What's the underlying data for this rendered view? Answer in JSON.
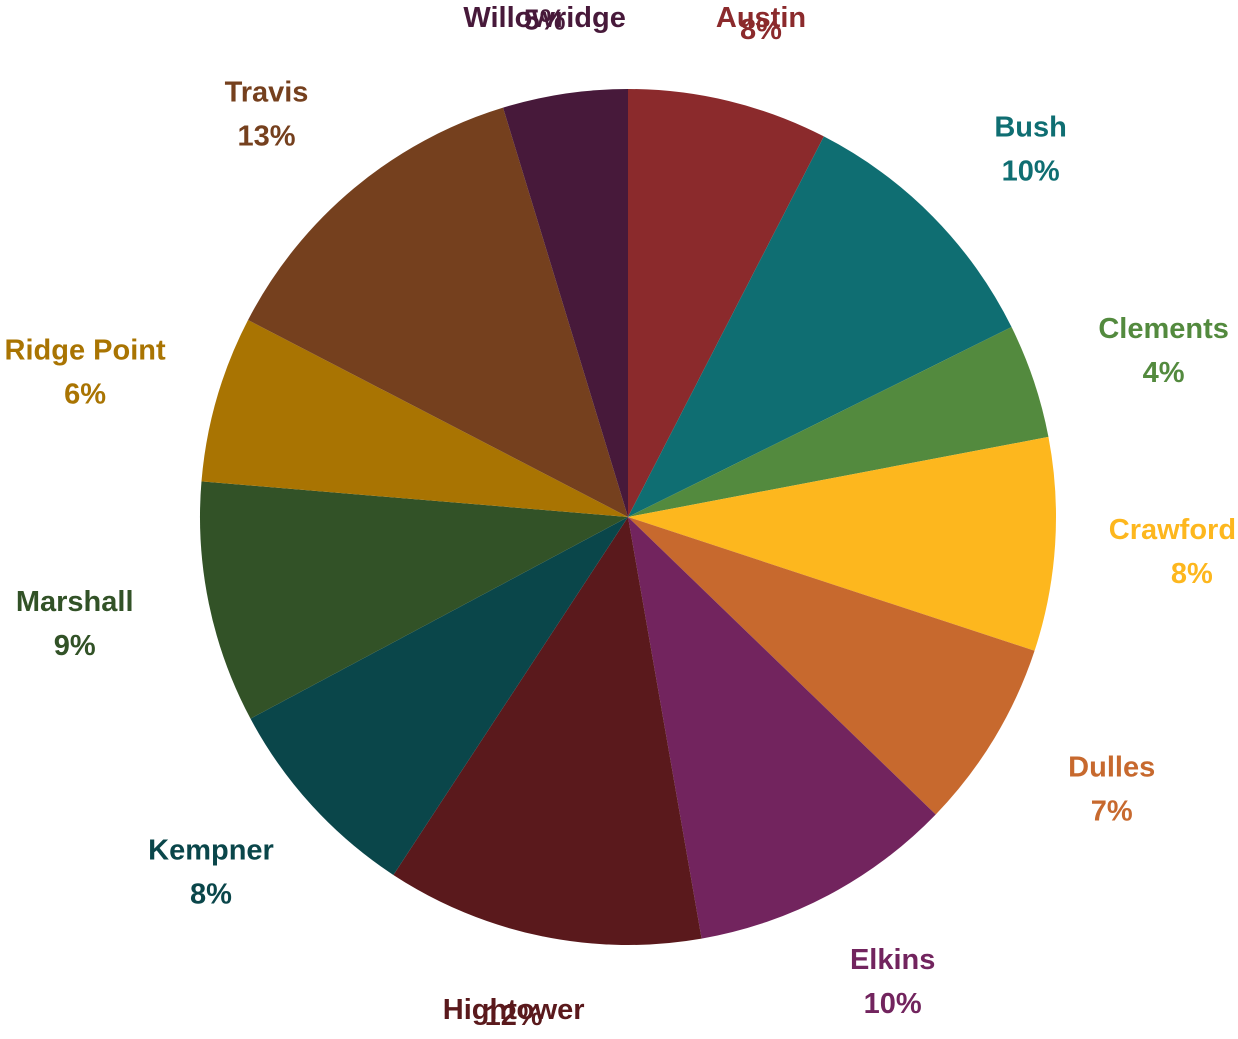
{
  "chart_data": {
    "type": "pie",
    "title": "",
    "start_angle_deg": 0,
    "direction": "clockwise",
    "slices": [
      {
        "label": "Austin",
        "percent_label": "8%",
        "value": 7.7,
        "color": "#8B2A2C"
      },
      {
        "label": "Bush",
        "percent_label": "10%",
        "value": 10.3,
        "color": "#0F6E72"
      },
      {
        "label": "Clements",
        "percent_label": "4%",
        "value": 4.4,
        "color": "#538A3E"
      },
      {
        "label": "Crawford",
        "percent_label": "8%",
        "value": 8.2,
        "color": "#FDB71E"
      },
      {
        "label": "Dulles",
        "percent_label": "7%",
        "value": 7.3,
        "color": "#C7692E"
      },
      {
        "label": "Elkins",
        "percent_label": "10%",
        "value": 10.2,
        "color": "#72245E"
      },
      {
        "label": "Hightower",
        "percent_label": "12%",
        "value": 12.2,
        "color": "#5A191C"
      },
      {
        "label": "Kempner",
        "percent_label": "8%",
        "value": 8.1,
        "color": "#0A464A"
      },
      {
        "label": "Marshall",
        "percent_label": "9%",
        "value": 9.3,
        "color": "#325227"
      },
      {
        "label": "Ridge Point",
        "percent_label": "6%",
        "value": 6.4,
        "color": "#A97402"
      },
      {
        "label": "Travis",
        "percent_label": "13%",
        "value": 12.9,
        "color": "#75401E"
      },
      {
        "label": "Willowridge",
        "percent_label": "5%",
        "value": 4.8,
        "color": "#47193A"
      }
    ],
    "legend": "none",
    "data_labels": "category name and percentage, outside each slice"
  }
}
